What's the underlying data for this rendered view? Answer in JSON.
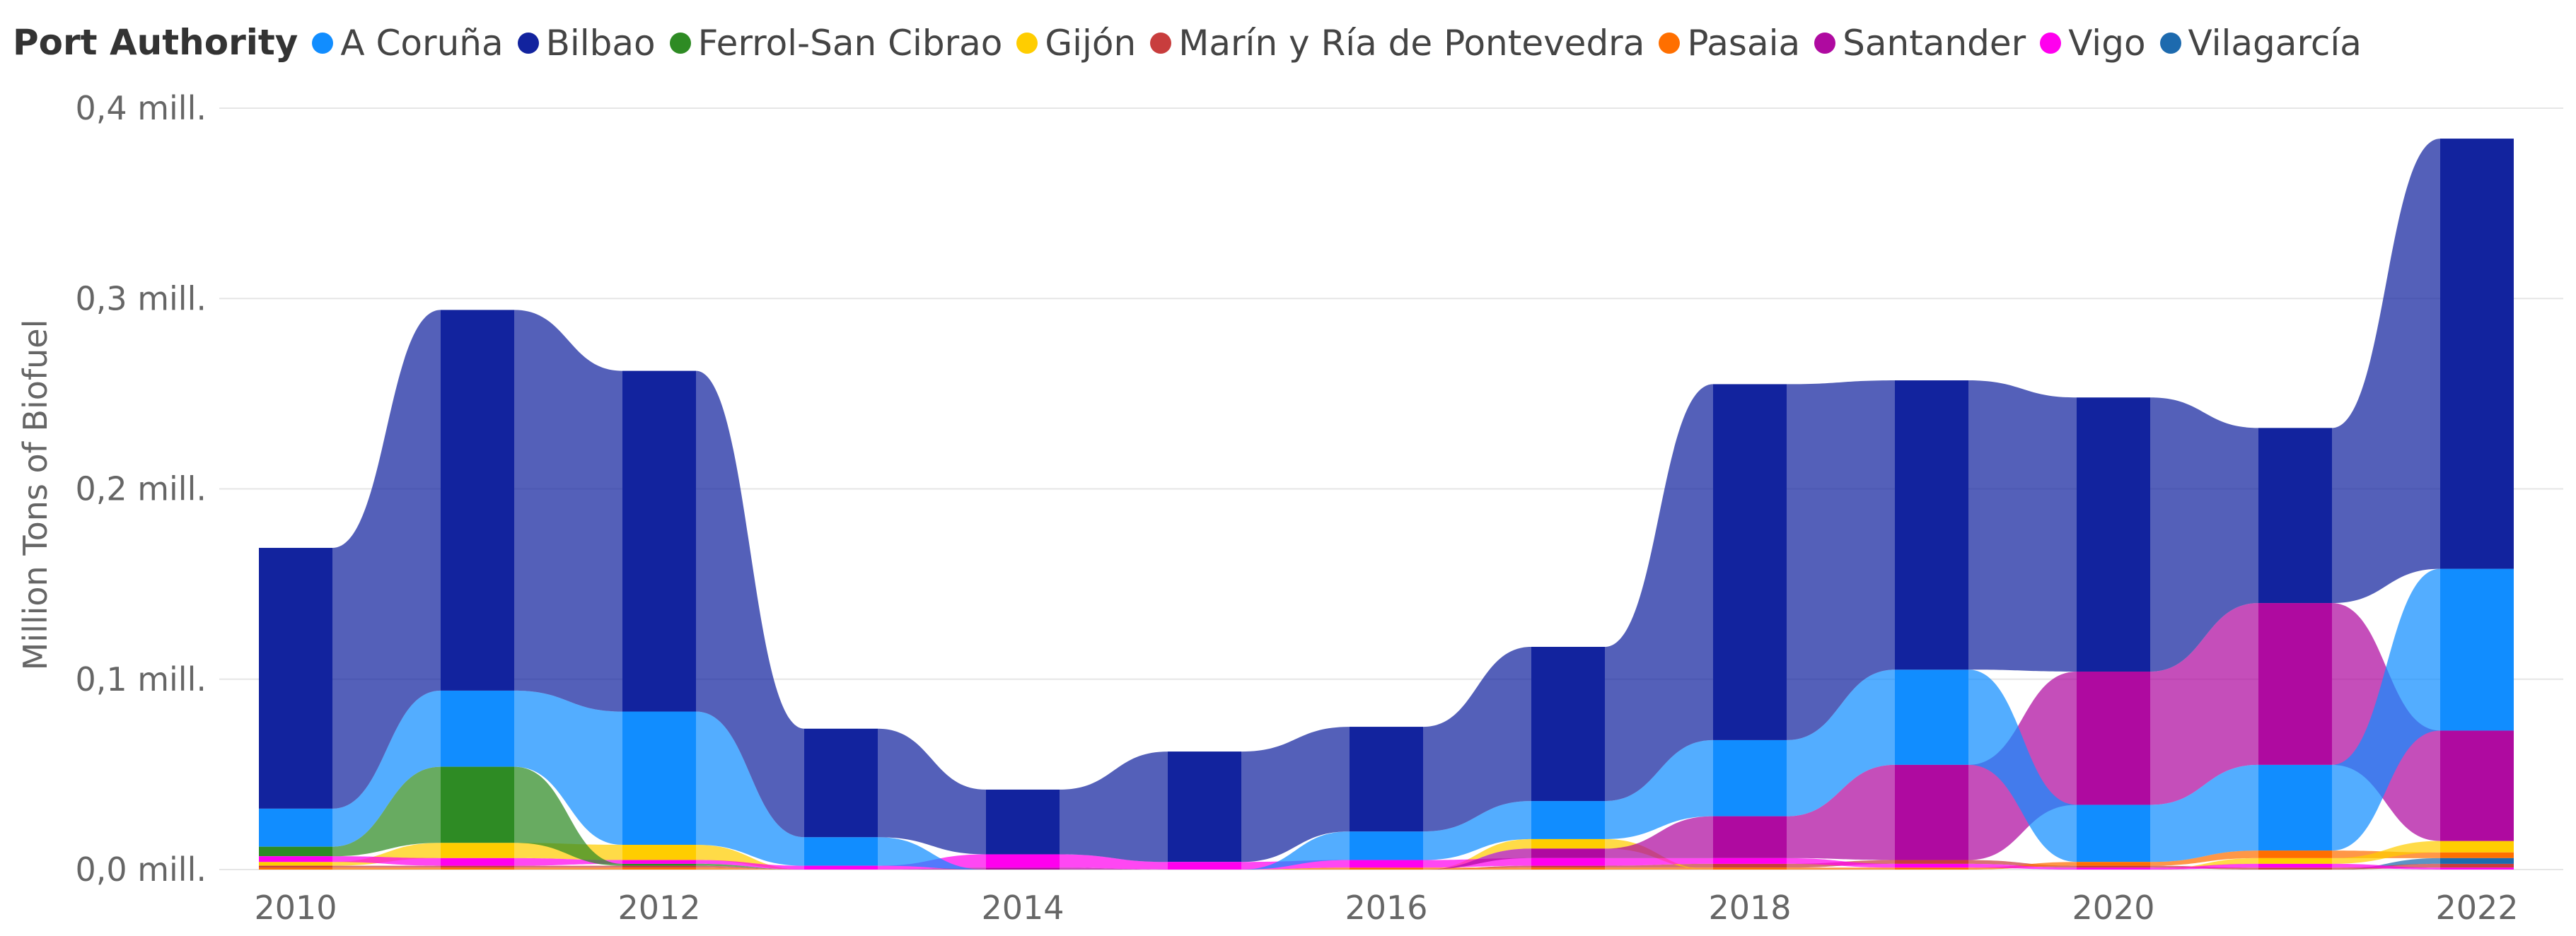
{
  "chart_data": {
    "type": "area",
    "subtype": "ribbon (stacked, sorted by value each year)",
    "legend_title": "Port Authority",
    "ylabel": "Million Tons of Biofuel",
    "xlabel": "",
    "ylim": [
      0,
      0.4
    ],
    "y_ticks": [
      0,
      0.1,
      0.2,
      0.3,
      0.4
    ],
    "y_tick_labels": [
      "0,0 mill.",
      "0,1 mill.",
      "0,2 mill.",
      "0,3 mill.",
      "0,4 mill."
    ],
    "x_tick_labels": [
      "2010",
      "2012",
      "2014",
      "2016",
      "2018",
      "2020",
      "2022"
    ],
    "x_tick_years": [
      2010,
      2012,
      2014,
      2016,
      2018,
      2020,
      2022
    ],
    "x": [
      2010,
      2011,
      2012,
      2013,
      2014,
      2015,
      2016,
      2017,
      2018,
      2019,
      2020,
      2021,
      2022
    ],
    "grid": true,
    "legend_position": "top",
    "series": [
      {
        "name": "A Coruña",
        "color": "#118DFF",
        "values": [
          0.02,
          0.04,
          0.07,
          0.015,
          0.0,
          0.0,
          0.015,
          0.02,
          0.04,
          0.05,
          0.03,
          0.045,
          0.085
        ]
      },
      {
        "name": "Bilbao",
        "color": "#12239E",
        "values": [
          0.137,
          0.2,
          0.179,
          0.057,
          0.034,
          0.058,
          0.055,
          0.081,
          0.187,
          0.152,
          0.144,
          0.092,
          0.226
        ]
      },
      {
        "name": "Ferrol-San Cibrao",
        "color": "#2E8B24",
        "values": [
          0.005,
          0.04,
          0.001,
          0.0,
          0.0,
          0.0,
          0.0,
          0.0,
          0.0,
          0.0,
          0.0,
          0.0,
          0.0
        ]
      },
      {
        "name": "Gijón",
        "color": "#FFCD00",
        "values": [
          0.002,
          0.008,
          0.008,
          0.0,
          0.0,
          0.0,
          0.0,
          0.005,
          0.0,
          0.0,
          0.0,
          0.003,
          0.006
        ]
      },
      {
        "name": "Marín y Ría de Pontevedra",
        "color": "#C83D3D",
        "values": [
          0.001,
          0.001,
          0.001,
          0.0,
          0.0,
          0.0,
          0.0,
          0.001,
          0.002,
          0.002,
          0.001,
          0.001,
          0.002
        ]
      },
      {
        "name": "Pasaia",
        "color": "#FF6F00",
        "values": [
          0.001,
          0.001,
          0.001,
          0.0,
          0.0,
          0.0,
          0.001,
          0.001,
          0.001,
          0.001,
          0.002,
          0.004,
          0.003
        ]
      },
      {
        "name": "Santander",
        "color": "#AF0AA0",
        "values": [
          0.0,
          0.0,
          0.0,
          0.0,
          0.001,
          0.0,
          0.0,
          0.005,
          0.022,
          0.05,
          0.07,
          0.085,
          0.058
        ]
      },
      {
        "name": "Vigo",
        "color": "#FF00EE",
        "values": [
          0.003,
          0.004,
          0.002,
          0.002,
          0.007,
          0.004,
          0.004,
          0.004,
          0.003,
          0.002,
          0.001,
          0.002,
          0.001
        ]
      },
      {
        "name": "Vilagarcía",
        "color": "#1D6AAE",
        "values": [
          0.0,
          0.0,
          0.0,
          0.0,
          0.0,
          0.0,
          0.0,
          0.0,
          0.0,
          0.0,
          0.0,
          0.0,
          0.003
        ]
      }
    ]
  }
}
